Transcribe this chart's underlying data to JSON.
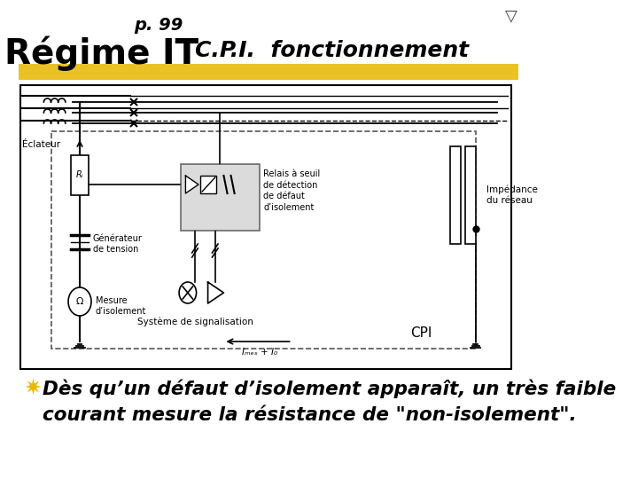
{
  "title_page": "p. 99",
  "title_main": "Régime IT",
  "title_right": "C.P.I.  fonctionnement",
  "highlight_color": "#E8B800",
  "bg_color": "#FFFFFF",
  "bullet_symbol": "✷",
  "bullet_color": "#E8B800",
  "body_text_line1": "Dès qu’un défaut d’isolement apparaît, un très faible",
  "body_text_line2": "courant mesure la résistance de \"non-isolement\".",
  "nav_symbol": "▽",
  "diagram_labels": {
    "eclateur": "Éclateur",
    "ri": "Rᵢ",
    "generateur": "Générateur\nde tension",
    "mesure": "Mesure\nd’isolement",
    "relais": "Relais à seuil\nde détection\nde défaut\nd’isolement",
    "systeme": "Système de signalisation",
    "cpi": "CPI",
    "impedance": "Impédance\ndu réseau",
    "current": "Iₘₑₛ + I₀"
  }
}
